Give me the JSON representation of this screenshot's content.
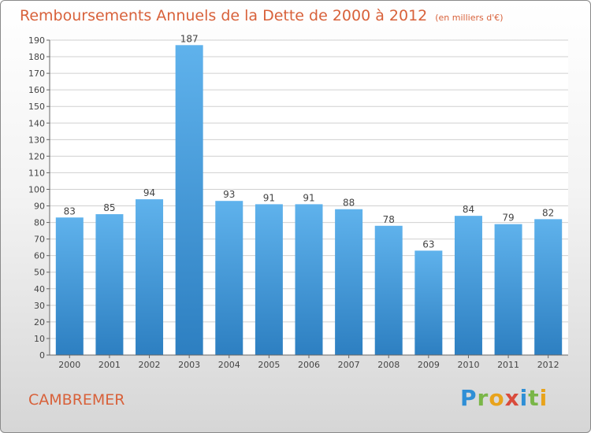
{
  "header": {
    "title": "Remboursements Annuels de la Dette de 2000 à 2012",
    "subtitle": "(en milliers d'€)"
  },
  "footer": {
    "commune": "CAMBREMER",
    "logo_text": "Proxiti"
  },
  "colors": {
    "title": "#d8613a",
    "bar_top": "#5fb2ec",
    "bar_bottom": "#2d7fc1"
  },
  "chart_data": {
    "type": "bar",
    "title": "Remboursements Annuels de la Dette de 2000 à 2012",
    "subtitle": "(en milliers d'€)",
    "categories": [
      "2000",
      "2001",
      "2002",
      "2003",
      "2004",
      "2005",
      "2006",
      "2007",
      "2008",
      "2009",
      "2010",
      "2011",
      "2012"
    ],
    "values": [
      83,
      85,
      94,
      187,
      93,
      91,
      91,
      88,
      78,
      63,
      84,
      79,
      82
    ],
    "data_labels": [
      "83",
      "85",
      "94",
      "187",
      "93",
      "91",
      "91",
      "88",
      "78",
      "63",
      "84",
      "79",
      "82"
    ],
    "yticks": [
      0,
      10,
      20,
      30,
      40,
      50,
      60,
      70,
      80,
      90,
      100,
      110,
      120,
      130,
      140,
      150,
      160,
      170,
      180,
      190
    ],
    "ylim": [
      0,
      190
    ],
    "grid": true,
    "legend": "none"
  }
}
